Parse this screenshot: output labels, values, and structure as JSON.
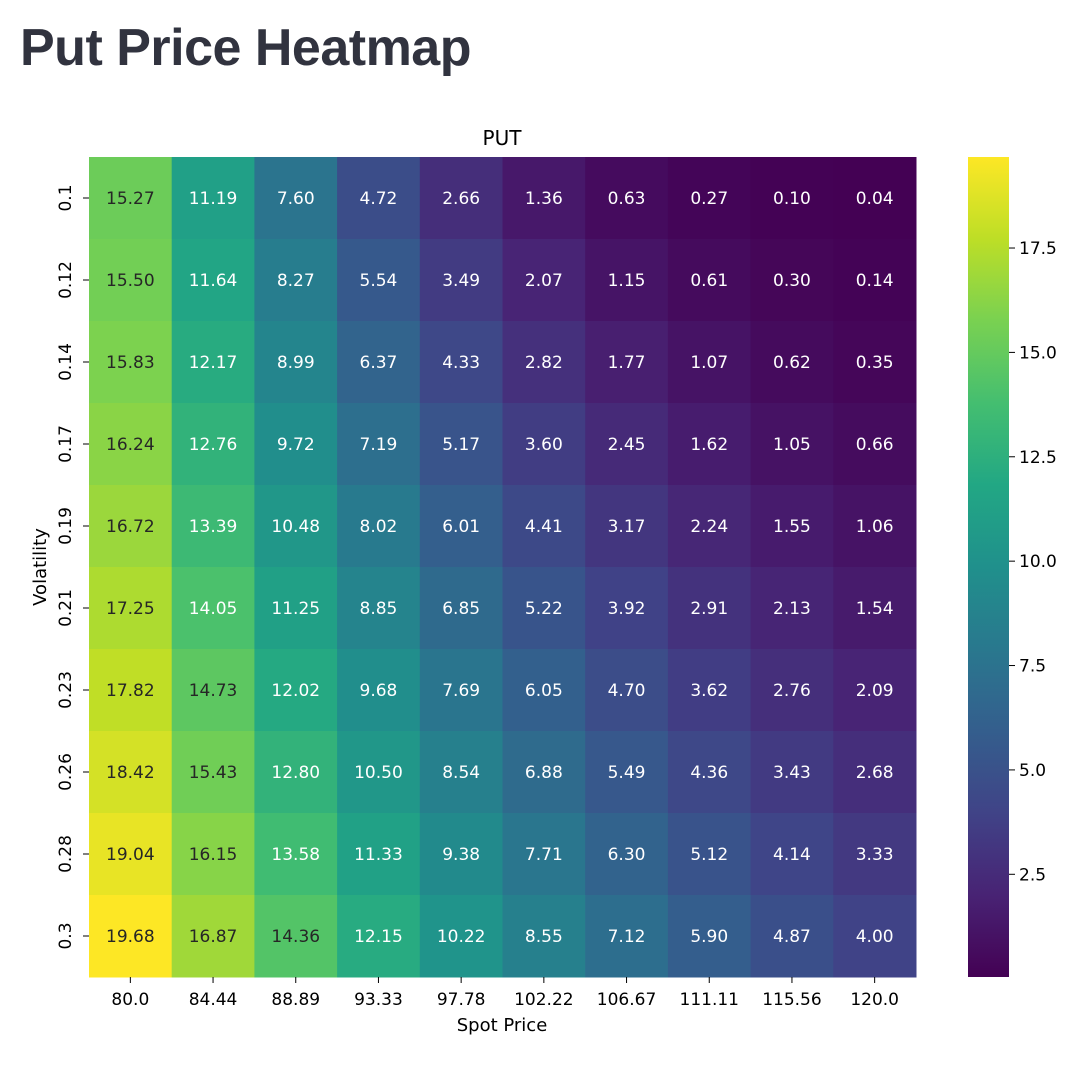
{
  "page": {
    "title": "Put Price Heatmap"
  },
  "chart_data": {
    "type": "heatmap",
    "title": "PUT",
    "xlabel": "Spot Price",
    "ylabel": "Volatility",
    "x": [
      "80.0",
      "84.44",
      "88.89",
      "93.33",
      "97.78",
      "102.22",
      "106.67",
      "111.11",
      "115.56",
      "120.0"
    ],
    "y": [
      "0.1",
      "0.12",
      "0.14",
      "0.17",
      "0.19",
      "0.21",
      "0.23",
      "0.26",
      "0.28",
      "0.3"
    ],
    "values": [
      [
        15.27,
        11.19,
        7.6,
        4.72,
        2.66,
        1.36,
        0.63,
        0.27,
        0.1,
        0.04
      ],
      [
        15.5,
        11.64,
        8.27,
        5.54,
        3.49,
        2.07,
        1.15,
        0.61,
        0.3,
        0.14
      ],
      [
        15.83,
        12.17,
        8.99,
        6.37,
        4.33,
        2.82,
        1.77,
        1.07,
        0.62,
        0.35
      ],
      [
        16.24,
        12.76,
        9.72,
        7.19,
        5.17,
        3.6,
        2.45,
        1.62,
        1.05,
        0.66
      ],
      [
        16.72,
        13.39,
        10.48,
        8.02,
        6.01,
        4.41,
        3.17,
        2.24,
        1.55,
        1.06
      ],
      [
        17.25,
        14.05,
        11.25,
        8.85,
        6.85,
        5.22,
        3.92,
        2.91,
        2.13,
        1.54
      ],
      [
        17.82,
        14.73,
        12.02,
        9.68,
        7.69,
        6.05,
        4.7,
        3.62,
        2.76,
        2.09
      ],
      [
        18.42,
        15.43,
        12.8,
        10.5,
        8.54,
        6.88,
        5.49,
        4.36,
        3.43,
        2.68
      ],
      [
        19.04,
        16.15,
        13.58,
        11.33,
        9.38,
        7.71,
        6.3,
        5.12,
        4.14,
        3.33
      ],
      [
        19.68,
        16.87,
        14.36,
        12.15,
        10.22,
        8.55,
        7.12,
        5.9,
        4.87,
        4.0
      ]
    ],
    "colormap": "viridis",
    "vmin": 0.04,
    "vmax": 19.68,
    "colorbar_ticks": [
      2.5,
      5.0,
      7.5,
      10.0,
      12.5,
      15.0,
      17.5
    ],
    "colorbar_tick_labels": [
      "2.5",
      "5.0",
      "7.5",
      "10.0",
      "12.5",
      "15.0",
      "17.5"
    ],
    "value_format": "2 decimals",
    "grid": false,
    "legend": "colorbar-right"
  }
}
